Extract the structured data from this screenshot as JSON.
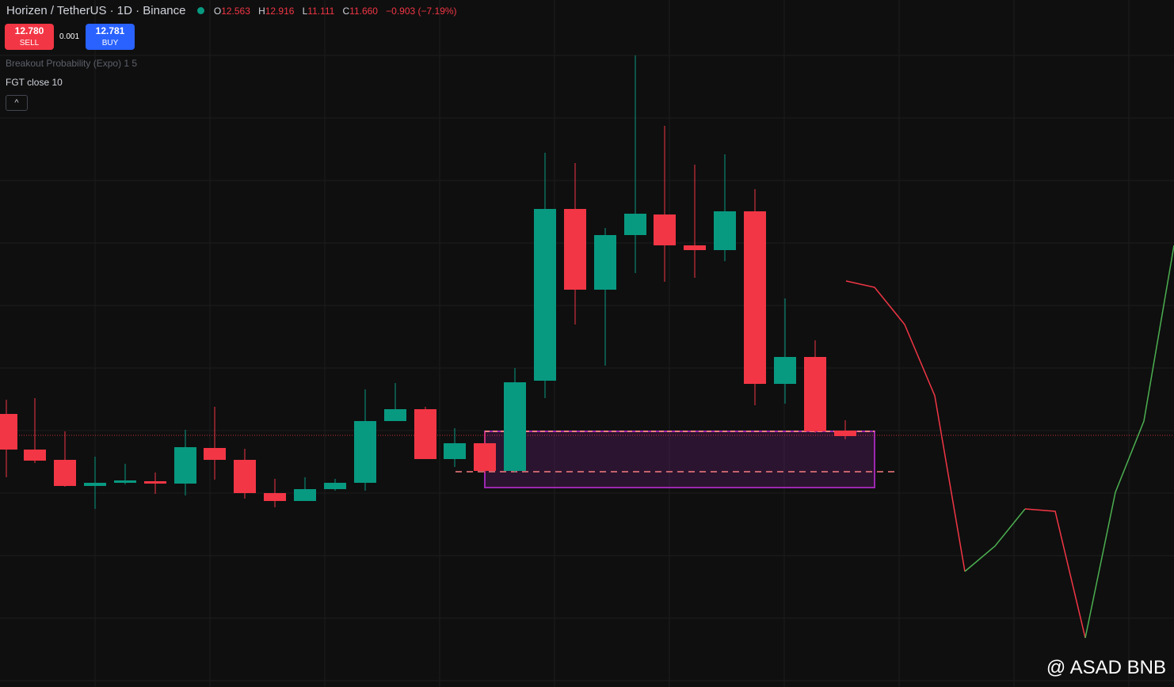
{
  "header": {
    "symbol": "Horizen / TetherUS · 1D · Binance",
    "ohlc": {
      "o_label": "O",
      "o": "12.563",
      "h_label": "H",
      "h": "12.916",
      "l_label": "L",
      "l": "11.111",
      "c_label": "C",
      "c": "11.660",
      "change": "−0.903 (−7.19%)"
    }
  },
  "trade": {
    "sell_price": "12.780",
    "sell": "SELL",
    "spread": "0.001",
    "buy_price": "12.781",
    "buy": "BUY"
  },
  "indicators": [
    "Breakout Probability (Expo) 1 5",
    "FGT close 10"
  ],
  "watermark": "@ ASAD BNB"
}
